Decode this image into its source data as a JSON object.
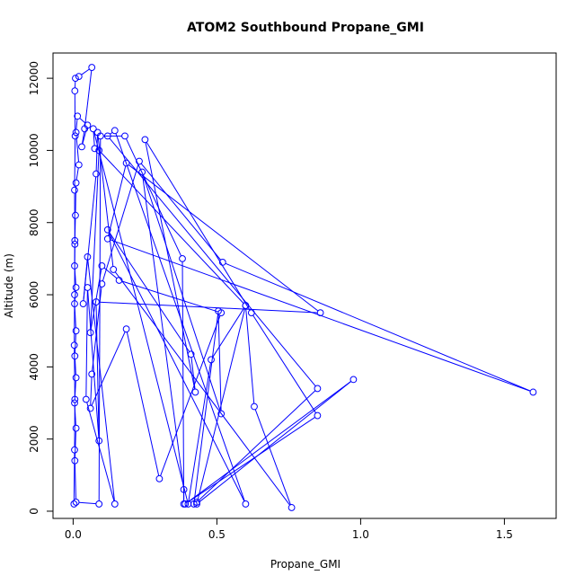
{
  "chart_data": {
    "type": "line",
    "title": "ATOM2 Southbound Propane_GMI",
    "xlabel": "Propane_GMI",
    "ylabel": "Altitude (m)",
    "xlim": [
      -0.07,
      1.68
    ],
    "ylim": [
      -200,
      12700
    ],
    "xticks": [
      0.0,
      0.5,
      1.0,
      1.5
    ],
    "xtick_labels": [
      "0.0",
      "0.5",
      "1.0",
      "1.5"
    ],
    "yticks": [
      0,
      2000,
      4000,
      6000,
      8000,
      10000,
      12000
    ],
    "ytick_labels": [
      "0",
      "2000",
      "4000",
      "6000",
      "8000",
      "10000",
      "12000"
    ],
    "grid": false,
    "series": [
      {
        "color": "#0000ff",
        "marker": "open-circle",
        "points": [
          [
            0.003,
            200
          ],
          [
            0.005,
            1700
          ],
          [
            0.006,
            3100
          ],
          [
            0.004,
            4600
          ],
          [
            0.005,
            6000
          ],
          [
            0.006,
            7400
          ],
          [
            0.005,
            8900
          ],
          [
            0.007,
            10400
          ],
          [
            0.006,
            11650
          ],
          [
            0.008,
            12000
          ],
          [
            0.02,
            12050
          ],
          [
            0.065,
            12300
          ],
          [
            0.04,
            10600
          ],
          [
            0.03,
            10100
          ],
          [
            0.05,
            10700
          ],
          [
            0.015,
            10950
          ],
          [
            0.01,
            10500
          ],
          [
            0.02,
            9600
          ],
          [
            0.01,
            9100
          ],
          [
            0.008,
            8200
          ],
          [
            0.006,
            7500
          ],
          [
            0.005,
            6800
          ],
          [
            0.01,
            6200
          ],
          [
            0.005,
            5750
          ],
          [
            0.01,
            5000
          ],
          [
            0.006,
            4300
          ],
          [
            0.01,
            3700
          ],
          [
            0.005,
            3000
          ],
          [
            0.01,
            2300
          ],
          [
            0.006,
            1400
          ],
          [
            0.01,
            250
          ],
          [
            0.09,
            200
          ],
          [
            0.095,
            10400
          ],
          [
            0.18,
            10400
          ],
          [
            0.38,
            7000
          ],
          [
            0.385,
            200
          ],
          [
            0.385,
            600
          ],
          [
            0.24,
            9400
          ],
          [
            0.515,
            2700
          ],
          [
            0.505,
            5550
          ],
          [
            0.42,
            200
          ],
          [
            0.43,
            250
          ],
          [
            0.85,
            3400
          ],
          [
            0.12,
            10400
          ],
          [
            0.145,
            10550
          ],
          [
            0.6,
            200
          ],
          [
            0.12,
            7800
          ],
          [
            0.41,
            4350
          ],
          [
            0.425,
            3300
          ],
          [
            0.25,
            10300
          ],
          [
            0.62,
            5500
          ],
          [
            0.85,
            2650
          ],
          [
            0.39,
            200
          ],
          [
            0.975,
            3650
          ],
          [
            0.43,
            200
          ],
          [
            0.6,
            5700
          ],
          [
            0.09,
            10000
          ],
          [
            0.06,
            4950
          ],
          [
            0.1,
            6800
          ],
          [
            0.16,
            6400
          ],
          [
            0.515,
            5500
          ],
          [
            0.3,
            900
          ],
          [
            0.185,
            5050
          ],
          [
            0.06,
            2850
          ],
          [
            0.065,
            3800
          ],
          [
            0.1,
            6300
          ],
          [
            0.23,
            9700
          ],
          [
            0.52,
            6900
          ],
          [
            1.6,
            3300
          ],
          [
            0.12,
            7550
          ],
          [
            0.185,
            9650
          ],
          [
            0.86,
            5500
          ],
          [
            0.08,
            5800
          ],
          [
            0.09,
            1950
          ],
          [
            0.05,
            6200
          ],
          [
            0.045,
            3100
          ],
          [
            0.145,
            200
          ],
          [
            0.05,
            7050
          ],
          [
            0.035,
            5750
          ],
          [
            0.08,
            9350
          ],
          [
            0.085,
            10500
          ],
          [
            0.14,
            6700
          ],
          [
            0.76,
            100
          ],
          [
            0.63,
            2900
          ],
          [
            0.6,
            5700
          ],
          [
            0.48,
            4200
          ],
          [
            0.4,
            200
          ],
          [
            0.07,
            10600
          ],
          [
            0.075,
            10050
          ]
        ]
      }
    ]
  }
}
